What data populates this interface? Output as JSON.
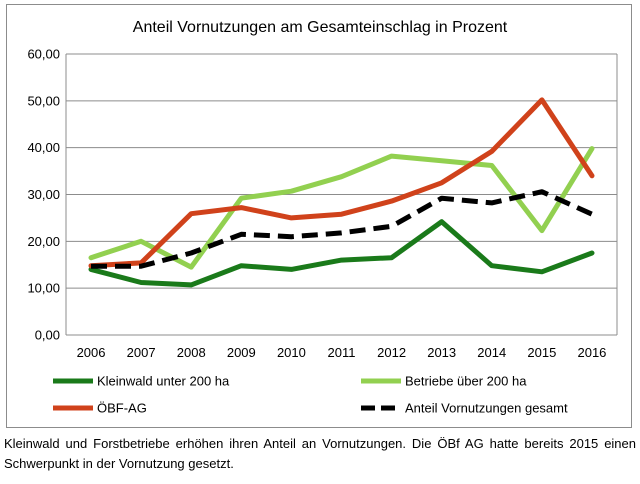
{
  "chart_data": {
    "type": "line",
    "title": "Anteil Vornutzungen  am Gesamteinschlag  in Prozent",
    "xlabel": "",
    "ylabel": "",
    "x": [
      "2006",
      "2007",
      "2008",
      "2009",
      "2010",
      "2011",
      "2012",
      "2013",
      "2014",
      "2015",
      "2016"
    ],
    "y_ticks": [
      "0,00",
      "10,00",
      "20,00",
      "30,00",
      "40,00",
      "50,00",
      "60,00"
    ],
    "ylim": [
      0,
      60
    ],
    "grid": true,
    "legend_position": "bottom",
    "series": [
      {
        "name": "Kleinwald unter 200 ha",
        "color": "#1a7a1a",
        "dashed": false,
        "values": [
          14.0,
          11.2,
          10.7,
          14.8,
          14.0,
          16.0,
          16.5,
          24.2,
          14.8,
          13.5,
          17.5
        ]
      },
      {
        "name": "Betriebe über 200 ha",
        "color": "#92d050",
        "dashed": false,
        "values": [
          16.5,
          20.0,
          14.5,
          29.2,
          30.7,
          33.8,
          38.2,
          37.2,
          36.2,
          22.3,
          39.8
        ]
      },
      {
        "name": "ÖBF-AG",
        "color": "#d0421b",
        "dashed": false,
        "values": [
          14.8,
          15.4,
          25.9,
          27.2,
          25.0,
          25.8,
          28.6,
          32.5,
          39.2,
          50.2,
          34.0
        ]
      },
      {
        "name": "Anteil Vornutzungen gesamt",
        "color": "#000000",
        "dashed": true,
        "values": [
          14.7,
          14.7,
          17.5,
          21.5,
          21.0,
          21.8,
          23.2,
          29.2,
          28.2,
          30.6,
          25.8
        ]
      }
    ]
  },
  "caption": "Kleinwald und Forstbetriebe erhöhen ihren Anteil an Vornutzungen. Die ÖBf AG hatte bereits 2015 einen Schwerpunkt in der Vornutzung gesetzt."
}
